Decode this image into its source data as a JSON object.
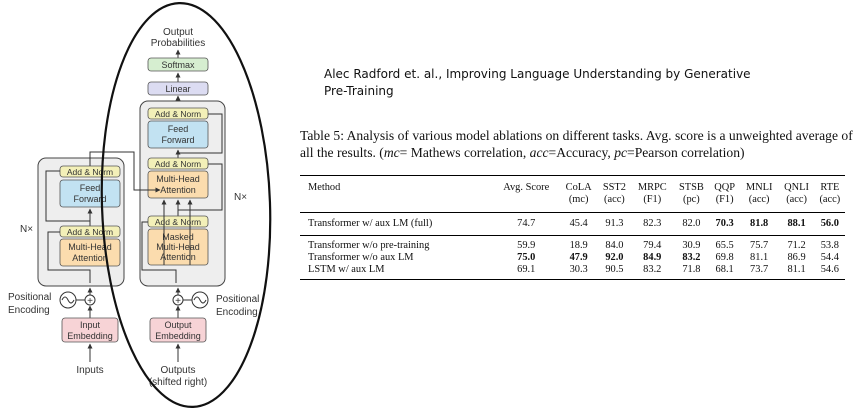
{
  "diagram": {
    "output_label": [
      "Output",
      "Probabilities"
    ],
    "softmax": "Softmax",
    "linear": "Linear",
    "add_norm": "Add & Norm",
    "feed_forward": [
      "Feed",
      "Forward"
    ],
    "multi_head_attention": [
      "Multi-Head",
      "Attention"
    ],
    "masked_attention": [
      "Masked",
      "Multi-Head",
      "Attention"
    ],
    "nx": "N×",
    "positional_encoding": [
      "Positional",
      "Encoding"
    ],
    "input_embedding": [
      "Input",
      "Embedding"
    ],
    "output_embedding": [
      "Output",
      "Embedding"
    ],
    "inputs": "Inputs",
    "outputs": [
      "Outputs",
      "(shifted right)"
    ],
    "plus": "+",
    "colors": {
      "add_norm": "#f3f0b8",
      "feed_forward": "#c2e2f2",
      "attention": "#fbdcae",
      "embedding": "#f7d3d6",
      "softmax": "#d6eed0",
      "linear": "#dcdcf2",
      "stack_bg": "#eeeeee"
    }
  },
  "citation": "Alec Radford et. al., Improving Language Understanding by Generative Pre-Training",
  "caption": {
    "label": "Table 5:",
    "text1": " Analysis of various model ablations on different tasks. Avg. score is a unweighted average of all the results. (",
    "mc": "mc",
    "t2": "= Mathews correlation, ",
    "acc": "acc",
    "t3": "=Accuracy, ",
    "pc": "pc",
    "t4": "=Pearson correlation)"
  },
  "table": {
    "headers": [
      {
        "name": "Method",
        "sub": ""
      },
      {
        "name": "Avg. Score",
        "sub": ""
      },
      {
        "name": "CoLA",
        "sub": "(mc)"
      },
      {
        "name": "SST2",
        "sub": "(acc)"
      },
      {
        "name": "MRPC",
        "sub": "(F1)"
      },
      {
        "name": "STSB",
        "sub": "(pc)"
      },
      {
        "name": "QQP",
        "sub": "(F1)"
      },
      {
        "name": "MNLI",
        "sub": "(acc)"
      },
      {
        "name": "QNLI",
        "sub": "(acc)"
      },
      {
        "name": "RTE",
        "sub": "(acc)"
      }
    ],
    "full": [
      {
        "cells": [
          "Transformer w/ aux LM (full)",
          "74.7",
          "45.4",
          "91.3",
          "82.3",
          "82.0",
          "70.3",
          "81.8",
          "88.1",
          "56.0"
        ],
        "bold": [
          false,
          false,
          false,
          false,
          false,
          false,
          true,
          true,
          true,
          true
        ]
      }
    ],
    "ablations": [
      {
        "cells": [
          "Transformer w/o pre-training",
          "59.9",
          "18.9",
          "84.0",
          "79.4",
          "30.9",
          "65.5",
          "75.7",
          "71.2",
          "53.8"
        ],
        "bold": [
          false,
          false,
          false,
          false,
          false,
          false,
          false,
          false,
          false,
          false
        ]
      },
      {
        "cells": [
          "Transformer w/o aux LM",
          "75.0",
          "47.9",
          "92.0",
          "84.9",
          "83.2",
          "69.8",
          "81.1",
          "86.9",
          "54.4"
        ],
        "bold": [
          false,
          true,
          true,
          true,
          true,
          true,
          false,
          false,
          false,
          false
        ]
      },
      {
        "cells": [
          "LSTM w/ aux LM",
          "69.1",
          "30.3",
          "90.5",
          "83.2",
          "71.8",
          "68.1",
          "73.7",
          "81.1",
          "54.6"
        ],
        "bold": [
          false,
          false,
          false,
          false,
          false,
          false,
          false,
          false,
          false,
          false
        ]
      }
    ]
  }
}
